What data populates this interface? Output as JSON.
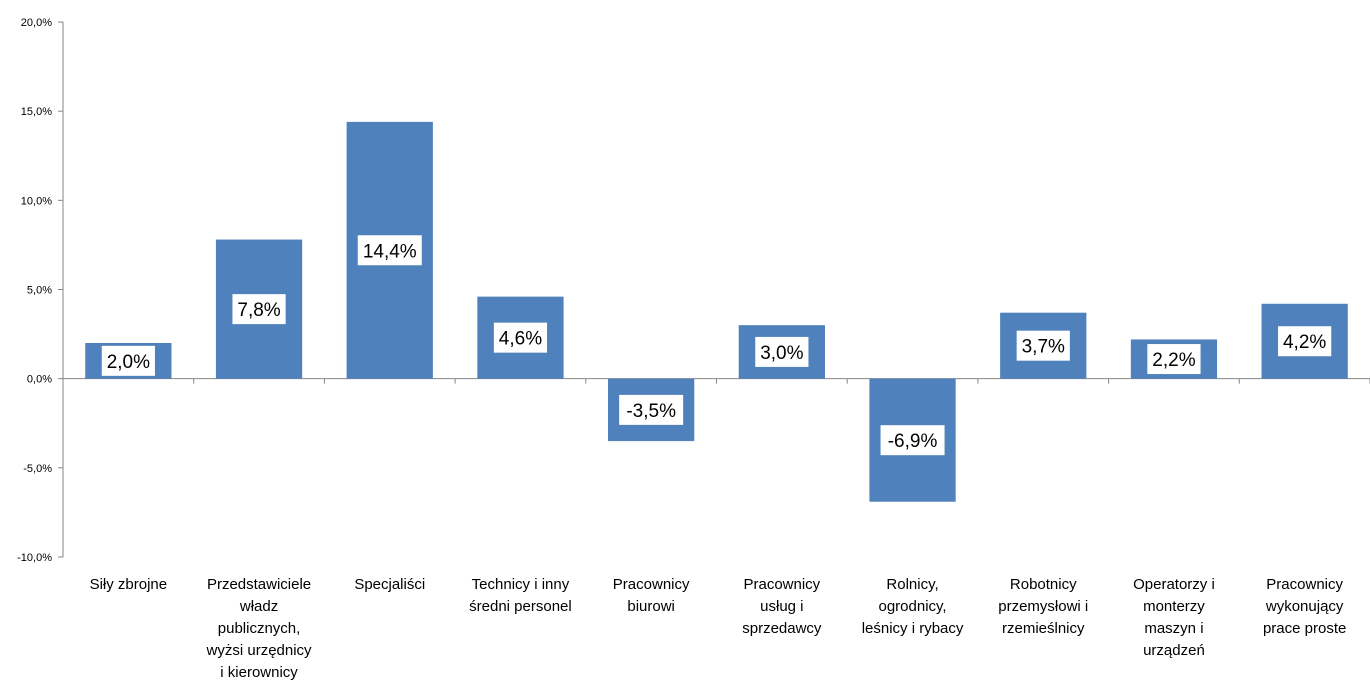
{
  "chart_data": {
    "type": "bar",
    "title": "",
    "xlabel": "",
    "ylabel": "",
    "ylim": [
      -10,
      20
    ],
    "y_ticks": [
      "20,0%",
      "15,0%",
      "10,0%",
      "5,0%",
      "0,0%",
      "-5,0%",
      "-10,0%"
    ],
    "y_tick_values": [
      20,
      15,
      10,
      5,
      0,
      -5,
      -10
    ],
    "grid": false,
    "legend": "none",
    "bar_color": "#4f81bd",
    "categories": [
      [
        "Siły zbrojne"
      ],
      [
        "Przedstawiciele",
        "władz",
        "publicznych,",
        "wyżsi urzędnicy",
        "i kierownicy"
      ],
      [
        "Specjaliści"
      ],
      [
        "Technicy i inny",
        "średni personel"
      ],
      [
        "Pracownicy",
        "biurowi"
      ],
      [
        "Pracownicy",
        "usług i",
        "sprzedawcy"
      ],
      [
        "Rolnicy,",
        "ogrodnicy,",
        "leśnicy i rybacy"
      ],
      [
        "Robotnicy",
        "przemysłowi i",
        "rzemieślnicy"
      ],
      [
        "Operatorzy i",
        "monterzy",
        "maszyn i",
        "urządzeń"
      ],
      [
        "Pracownicy",
        "wykonujący",
        "prace proste"
      ]
    ],
    "values": [
      2.0,
      7.8,
      14.4,
      4.6,
      -3.5,
      3.0,
      -6.9,
      3.7,
      2.2,
      4.2
    ],
    "data_labels": [
      "2,0%",
      "7,8%",
      "14,4%",
      "4,6%",
      "-3,5%",
      "3,0%",
      "-6,9%",
      "3,7%",
      "2,2%",
      "4,2%"
    ]
  }
}
